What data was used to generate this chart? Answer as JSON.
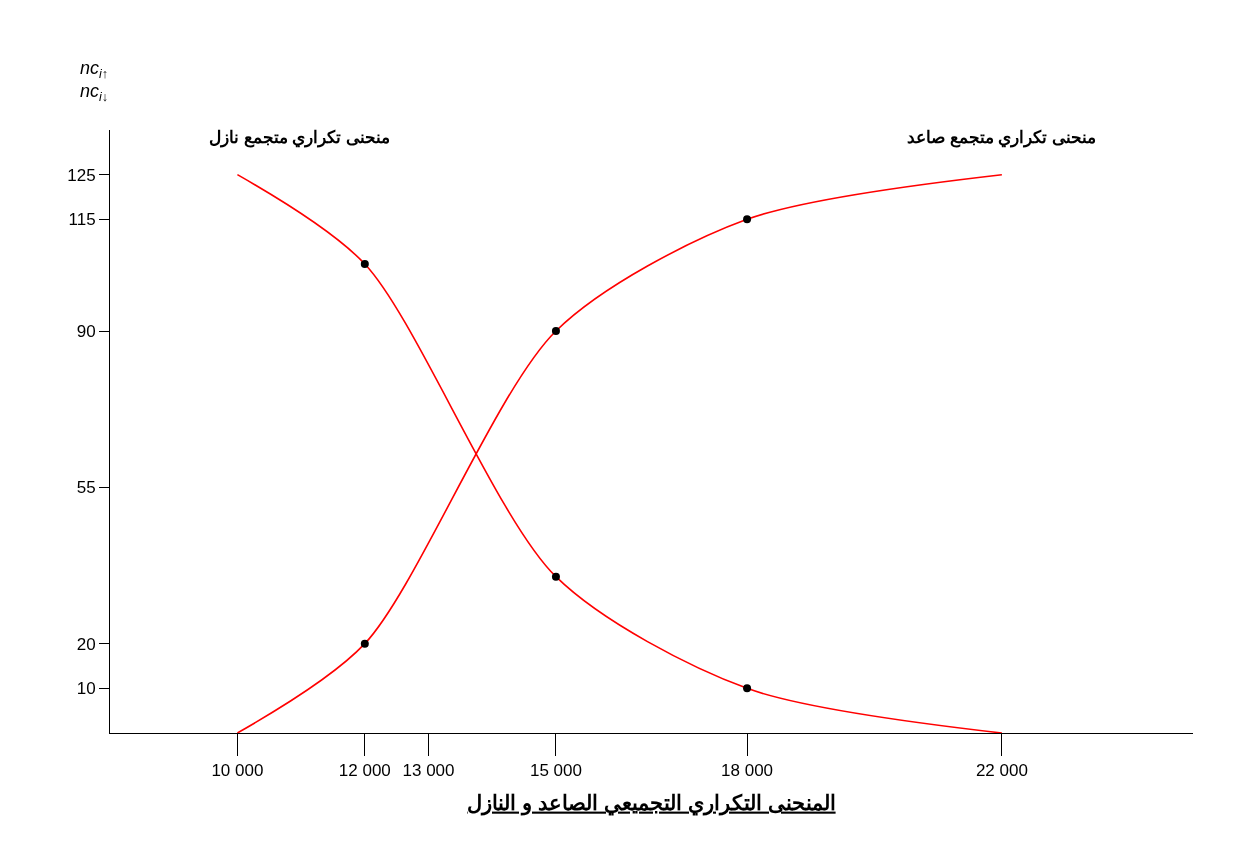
{
  "chart_data": {
    "type": "line",
    "xlabel": "المنحنى التكراري التجميعي الصاعد و النازل",
    "ylabel": "nc$_{i↑}$\nnc$_{i↓}$",
    "series": [
      {
        "name": "منحنى تكراري متجمع صاعد",
        "color": "#ff0000",
        "x": [
          10000,
          12000,
          15000,
          18000,
          22000
        ],
        "values": [
          0,
          20,
          90,
          115,
          125
        ]
      },
      {
        "name": "منحنى تكراري متجمع نازل",
        "color": "#ff0000",
        "x": [
          10000,
          12000,
          15000,
          18000,
          22000
        ],
        "values": [
          125,
          105,
          35,
          10,
          0
        ]
      },
      {
        "type": "scatter",
        "color": "#000000",
        "marker": "circle",
        "x": [
          12000,
          15000,
          18000,
          12000,
          15000,
          18000
        ],
        "values": [
          20,
          90,
          115,
          105,
          35,
          10
        ]
      }
    ],
    "xlim": [
      8000,
      25000
    ],
    "ylim": [
      0,
      135
    ],
    "xticks": [
      10000,
      {
        "value": 12000,
        "label": "12 000"
      },
      {
        "value": 13000,
        "label": "13 000"
      },
      {
        "value": 15000,
        "label": "15 000"
      },
      {
        "value": 18000,
        "label": "18 000"
      },
      {
        "value": 22000,
        "label": "22 000"
      }
    ],
    "yticks": [
      10,
      20,
      55,
      90,
      115,
      125
    ],
    "grid": false,
    "legend": false,
    "marker": "none",
    "line_style": "solid"
  }
}
